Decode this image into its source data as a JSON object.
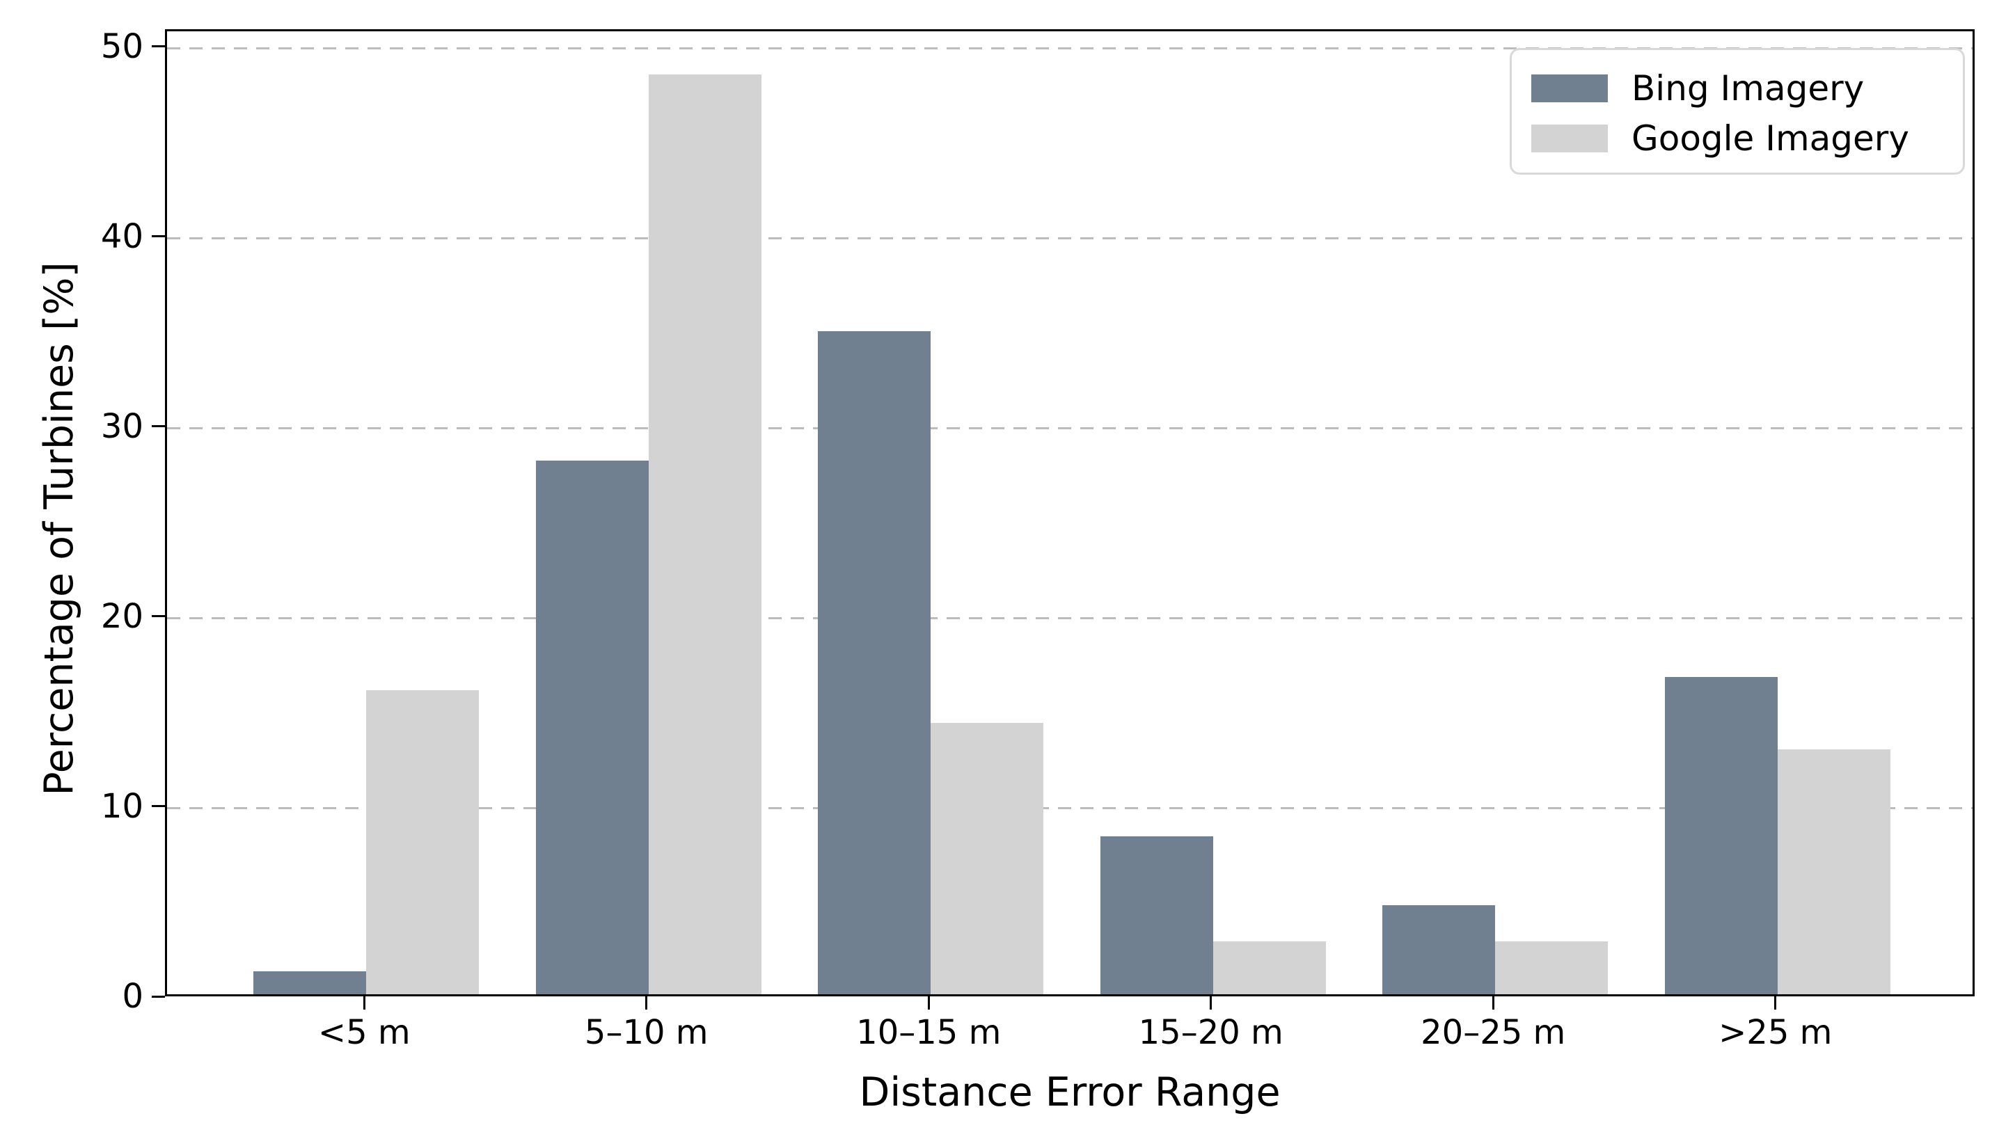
{
  "chart_data": {
    "type": "bar",
    "title": "",
    "categories": [
      "<5 m",
      "5–10 m",
      "10–15 m",
      "15–20 m",
      "20–25 m",
      ">25 m"
    ],
    "series": [
      {
        "name": "Bing Imagery",
        "color": "#708090",
        "values": [
          1.2,
          28.1,
          34.9,
          8.3,
          4.7,
          16.7
        ]
      },
      {
        "name": "Google Imagery",
        "color": "#d3d3d3",
        "values": [
          16.0,
          48.4,
          14.3,
          2.8,
          2.8,
          12.9
        ]
      }
    ],
    "xlabel": "Distance Error Range",
    "ylabel": "Percentage of Turbines [%]",
    "ylim": [
      0,
      50.9
    ],
    "xlim": [
      -0.706,
      5.706
    ],
    "yticks": [
      0,
      10,
      20,
      30,
      40,
      50
    ],
    "bar_width_category_fraction": 0.4,
    "grid": {
      "axis": "y",
      "style": "dashed",
      "color": "#bcbcbc"
    },
    "legend": {
      "position": "upper right",
      "labels": [
        "Bing Imagery",
        "Google Imagery"
      ]
    }
  }
}
